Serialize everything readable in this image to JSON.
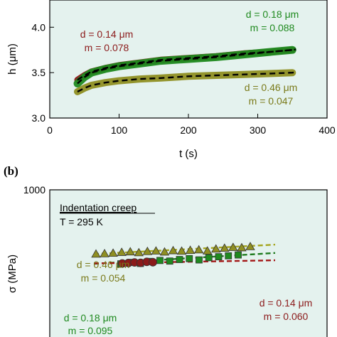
{
  "colors": {
    "plot_bg": "#e4f2ee",
    "red": "#8b1a1a",
    "green": "#1f8a1f",
    "olive": "#8f8f22",
    "olive_text": "#7a7a1a",
    "fit": "#000000",
    "dash_red": "#a31515",
    "dash_green": "#1e7a1e",
    "dash_olive": "#a5a51f"
  },
  "panel_b": {
    "label": "(b)"
  },
  "chart_data": [
    {
      "type": "line",
      "xlabel": "t (s)",
      "ylabel": "h (μm)",
      "xlim": [
        0,
        400
      ],
      "ylim": [
        3.0,
        4.3
      ],
      "xticks": [
        "0",
        "100",
        "200",
        "300",
        "400"
      ],
      "yticks": [
        "3.0",
        "3.5",
        "4.0"
      ],
      "series": [
        {
          "name": "d = 0.14 μm",
          "color": "red",
          "t": [
            40,
            50,
            60,
            80,
            100,
            130,
            160,
            200,
            240,
            280,
            320,
            350
          ],
          "h": [
            3.42,
            3.47,
            3.51,
            3.55,
            3.58,
            3.61,
            3.64,
            3.66,
            3.68,
            3.71,
            3.73,
            3.75
          ]
        },
        {
          "name": "d = 0.18 μm",
          "color": "green",
          "t": [
            40,
            50,
            60,
            80,
            100,
            130,
            160,
            200,
            240,
            280,
            320,
            350
          ],
          "h": [
            3.38,
            3.45,
            3.5,
            3.54,
            3.57,
            3.6,
            3.63,
            3.65,
            3.67,
            3.7,
            3.73,
            3.75
          ]
        },
        {
          "name": "d = 0.46 μm",
          "color": "olive",
          "t": [
            40,
            50,
            60,
            80,
            100,
            130,
            160,
            200,
            240,
            280,
            320,
            350
          ],
          "h": [
            3.29,
            3.33,
            3.36,
            3.39,
            3.41,
            3.43,
            3.44,
            3.46,
            3.47,
            3.48,
            3.49,
            3.5
          ]
        }
      ],
      "annotations": [
        {
          "line1": "d = 0.14 μm",
          "line2": "m = 0.078",
          "color": "red"
        },
        {
          "line1": "d = 0.18 μm",
          "line2": "m = 0.088",
          "color": "green"
        },
        {
          "line1": "d = 0.46 μm",
          "line2": "m = 0.047",
          "color": "olive"
        }
      ]
    },
    {
      "type": "scatter",
      "ylabel": "σ (MPa)",
      "yscale": "log",
      "yticks": [
        "1000"
      ],
      "box_title": "Indentation creep",
      "box_subtitle": "T = 295 K",
      "series": [
        {
          "name": "d = 0.46 μm",
          "marker": "triangle",
          "color": "olive",
          "sigma": [
            380,
            382,
            385,
            390,
            393,
            388,
            395,
            398,
            392,
            400,
            397,
            402,
            405,
            398,
            410,
            415,
            420,
            418,
            425
          ]
        },
        {
          "name": "d = 0.18 μm",
          "marker": "square",
          "color": "green",
          "sigma": [
            328,
            335,
            330,
            340,
            345,
            342,
            350,
            355,
            348,
            360,
            365,
            370,
            375
          ]
        },
        {
          "name": "d = 0.14 μm",
          "marker": "circle",
          "color": "red",
          "sigma": [
            330,
            332,
            335,
            333,
            338,
            336
          ]
        }
      ],
      "annotations": [
        {
          "line1": "d = 0.46 μm",
          "line2": "m = 0.054",
          "color": "olive"
        },
        {
          "line1": "d = 0.18 μm",
          "line2": "m = 0.095",
          "color": "green"
        },
        {
          "line1": "d = 0.14 μm",
          "line2": "m = 0.060",
          "color": "red"
        }
      ]
    }
  ]
}
